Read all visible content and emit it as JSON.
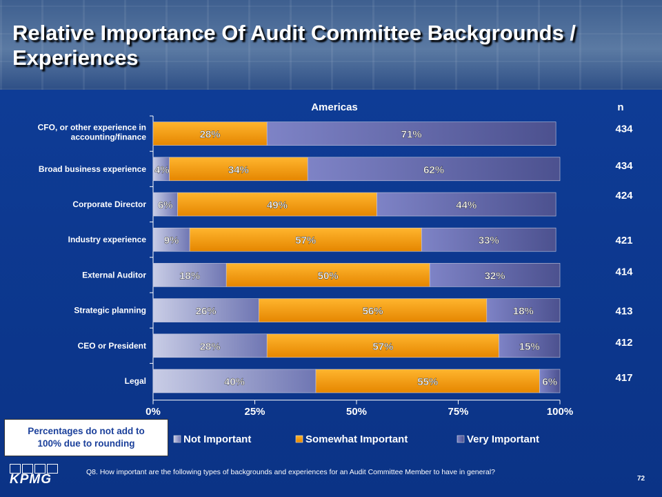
{
  "title": "Relative Importance Of Audit Committee Backgrounds / Experiences",
  "chart_data": {
    "type": "bar",
    "orientation": "horizontal",
    "stacked": true,
    "header": "Americas",
    "n_header": "n",
    "categories": [
      "CFO, or other experience in accounting/finance",
      "Broad business experience",
      "Corporate Director",
      "Industry experience",
      "External Auditor",
      "Strategic planning",
      "CEO or President",
      "Legal"
    ],
    "series": [
      {
        "name": "Not Important",
        "values": [
          0,
          4,
          6,
          9,
          18,
          26,
          28,
          40
        ],
        "color": "#9aa3cf"
      },
      {
        "name": "Somewhat Important",
        "values": [
          28,
          34,
          49,
          57,
          50,
          56,
          57,
          55
        ],
        "color": "#f59a0c"
      },
      {
        "name": "Very Important",
        "values": [
          71,
          62,
          44,
          33,
          32,
          18,
          15,
          6
        ],
        "color": "#7a7fc2"
      }
    ],
    "n_values": [
      "434",
      "434",
      "424",
      "421",
      "414",
      "413",
      "412",
      "417"
    ],
    "x_ticks": [
      "0%",
      "25%",
      "50%",
      "75%",
      "100%"
    ],
    "xlim": [
      0,
      100
    ],
    "legend_position": "bottom"
  },
  "footnote": "Percentages do not add to\n100% due to rounding",
  "question": "Q8. How important are the following types of backgrounds and experiences for an Audit Committee Member to have in general?",
  "page_number": "72",
  "logo_text": "KPMG"
}
